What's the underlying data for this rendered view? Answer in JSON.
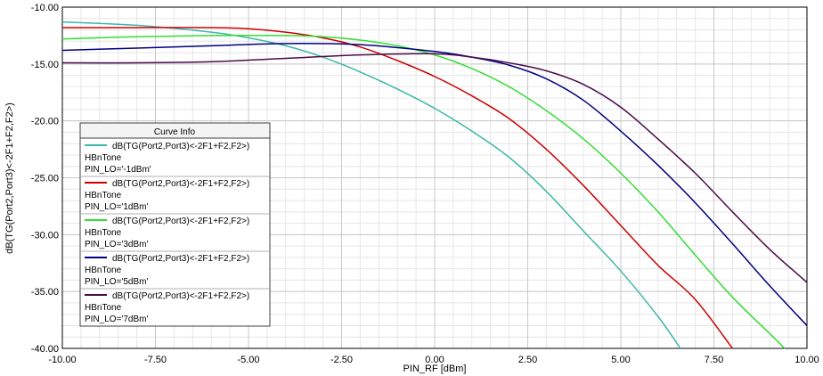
{
  "chart_data": {
    "type": "line",
    "title": "",
    "xlabel": "PIN_RF [dBm]",
    "ylabel": "dB(TG(Port2,Port3)<-2F1+F2,F2>)",
    "xlim": [
      -10,
      10
    ],
    "ylim": [
      -40,
      -10
    ],
    "x_ticks": [
      "-10.00",
      "-7.50",
      "-5.00",
      "-2.50",
      "0.00",
      "2.50",
      "5.00",
      "7.50",
      "10.00"
    ],
    "y_ticks": [
      "-10.00",
      "-15.00",
      "-20.00",
      "-25.00",
      "-30.00",
      "-35.00",
      "-40.00"
    ],
    "grid": true,
    "legend": {
      "title": "Curve Info",
      "position": "bottom-left"
    },
    "series": [
      {
        "name": "dB(TG(Port2,Port3)<-2F1+F2,F2>)",
        "sub1": "HBnTone",
        "sub2": "PIN_LO='-1dBm'",
        "color": "#3cb8a8",
        "x": [
          -10,
          -8,
          -6,
          -5,
          -4,
          -3,
          -2,
          -1,
          0,
          1,
          2,
          3,
          4,
          5,
          6,
          6.6
        ],
        "y": [
          -11.3,
          -11.6,
          -12.2,
          -12.7,
          -13.4,
          -14.4,
          -15.7,
          -17.2,
          -18.9,
          -20.9,
          -23.2,
          -26.2,
          -29.7,
          -33.2,
          -37.2,
          -40
        ]
      },
      {
        "name": "dB(TG(Port2,Port3)<-2F1+F2,F2>)",
        "sub1": "HBnTone",
        "sub2": "PIN_LO='1dBm'",
        "color": "#cc0000",
        "x": [
          -10,
          -8,
          -6,
          -5,
          -4,
          -3,
          -2,
          -1,
          0,
          1,
          2,
          3,
          4,
          5,
          6,
          7,
          8
        ],
        "y": [
          -11.8,
          -11.8,
          -11.8,
          -11.9,
          -12.2,
          -12.7,
          -13.5,
          -14.7,
          -16.1,
          -17.8,
          -19.8,
          -22.5,
          -25.7,
          -29.2,
          -32.7,
          -35.7,
          -40
        ]
      },
      {
        "name": "dB(TG(Port2,Port3)<-2F1+F2,F2>)",
        "sub1": "HBnTone",
        "sub2": "PIN_LO='3dBm'",
        "color": "#33dd33",
        "x": [
          -10,
          -8,
          -6,
          -4,
          -3,
          -2,
          -1,
          0,
          1,
          2,
          3,
          4,
          5,
          6,
          7,
          8,
          9,
          9.4
        ],
        "y": [
          -12.8,
          -12.6,
          -12.5,
          -12.5,
          -12.6,
          -12.9,
          -13.4,
          -14.2,
          -15.4,
          -17.0,
          -19.1,
          -21.6,
          -24.6,
          -28.0,
          -31.8,
          -35.5,
          -38.7,
          -40
        ]
      },
      {
        "name": "dB(TG(Port2,Port3)<-2F1+F2,F2>)",
        "sub1": "HBnTone",
        "sub2": "PIN_LO='5dBm'",
        "color": "#000080",
        "x": [
          -10,
          -8,
          -6,
          -4,
          -2,
          0,
          1,
          2,
          3,
          4,
          5,
          6,
          7,
          8,
          9,
          10
        ],
        "y": [
          -13.8,
          -13.6,
          -13.4,
          -13.2,
          -13.3,
          -13.9,
          -14.4,
          -15.1,
          -16.3,
          -18.2,
          -20.9,
          -23.9,
          -27.2,
          -30.8,
          -34.5,
          -38.0
        ]
      },
      {
        "name": "dB(TG(Port2,Port3)<-2F1+F2,F2>)",
        "sub1": "HBnTone",
        "sub2": "PIN_LO='7dBm'",
        "color": "#4a0a4a",
        "x": [
          -10,
          -8,
          -6,
          -4,
          -2,
          0,
          1,
          2,
          3,
          4,
          5,
          6,
          7,
          8,
          9,
          10
        ],
        "y": [
          -14.9,
          -14.9,
          -14.8,
          -14.5,
          -14.2,
          -14.1,
          -14.4,
          -14.9,
          -15.6,
          -16.8,
          -18.8,
          -21.6,
          -24.6,
          -28.0,
          -31.3,
          -34.2
        ]
      }
    ]
  }
}
